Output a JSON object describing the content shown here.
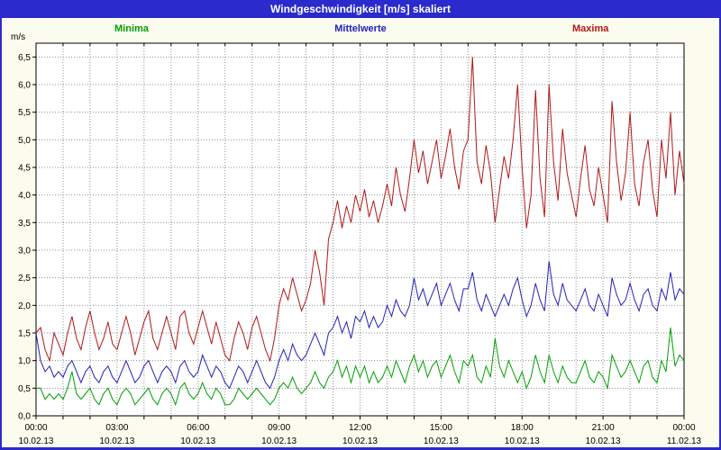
{
  "window": {
    "title": "Windgeschwindigkeit [m/s] skaliert"
  },
  "colors": {
    "title_bar": "#2A2ACD",
    "plot_background": "#FFFFFF",
    "page_background": "#FBFBEE",
    "grid": "#909090",
    "axis": "#000000"
  },
  "chart_data": {
    "type": "line",
    "title": "Windgeschwindigkeit [m/s] skaliert",
    "y_unit": "m/s",
    "ylabel": "m/s",
    "xlabel": "",
    "y_min": 0.0,
    "y_max": 6.5,
    "y_step": 0.5,
    "grid": "dotted",
    "legend_position": "top",
    "y_tick_labels": [
      "0,0",
      "0,5",
      "1,0",
      "1,5",
      "2,0",
      "2,5",
      "3,0",
      "3,5",
      "4,0",
      "4,5",
      "5,0",
      "5,5",
      "6,0",
      "6,5"
    ],
    "x_hours": 24,
    "x_ticks": [
      {
        "time": "00:00",
        "date": "10.02.13"
      },
      {
        "time": "03:00",
        "date": "10.02.13"
      },
      {
        "time": "06:00",
        "date": "10.02.13"
      },
      {
        "time": "09:00",
        "date": "10.02.13"
      },
      {
        "time": "12:00",
        "date": "10.02.13"
      },
      {
        "time": "15:00",
        "date": "10.02.13"
      },
      {
        "time": "18:00",
        "date": "10.02.13"
      },
      {
        "time": "21:00",
        "date": "10.02.13"
      },
      {
        "time": "00:00",
        "date": "11.02.13"
      }
    ],
    "series": [
      {
        "name": "Minima",
        "color": "#00A000",
        "values": [
          0.5,
          0.5,
          0.3,
          0.4,
          0.3,
          0.4,
          0.3,
          0.5,
          0.8,
          0.4,
          0.3,
          0.4,
          0.5,
          0.3,
          0.2,
          0.4,
          0.5,
          0.3,
          0.2,
          0.4,
          0.5,
          0.4,
          0.2,
          0.3,
          0.4,
          0.5,
          0.3,
          0.2,
          0.4,
          0.5,
          0.4,
          0.2,
          0.5,
          0.6,
          0.4,
          0.3,
          0.4,
          0.6,
          0.4,
          0.3,
          0.5,
          0.4,
          0.2,
          0.2,
          0.3,
          0.5,
          0.4,
          0.3,
          0.4,
          0.5,
          0.4,
          0.3,
          0.2,
          0.3,
          0.5,
          0.6,
          0.5,
          0.7,
          0.5,
          0.4,
          0.5,
          0.6,
          0.8,
          0.6,
          0.5,
          0.7,
          0.8,
          1.0,
          0.7,
          0.9,
          0.6,
          0.9,
          0.7,
          0.9,
          0.6,
          0.8,
          0.6,
          0.7,
          0.9,
          0.7,
          1.0,
          0.8,
          0.6,
          0.9,
          1.1,
          0.8,
          1.0,
          0.7,
          0.9,
          1.0,
          0.7,
          0.9,
          1.1,
          0.8,
          0.6,
          1.0,
          0.9,
          1.1,
          0.7,
          0.6,
          0.9,
          0.7,
          1.4,
          0.9,
          0.7,
          1.0,
          0.8,
          0.6,
          0.8,
          0.5,
          0.7,
          1.1,
          0.8,
          0.6,
          1.1,
          0.8,
          0.6,
          0.9,
          0.7,
          0.6,
          0.6,
          0.8,
          1.0,
          0.7,
          0.6,
          0.8,
          0.7,
          0.5,
          1.1,
          0.9,
          0.7,
          0.8,
          1.0,
          0.8,
          0.6,
          0.9,
          1.0,
          0.7,
          0.6,
          1.0,
          0.8,
          1.6,
          0.9,
          1.1,
          1.0
        ]
      },
      {
        "name": "Mittelwerte",
        "color": "#2222BB",
        "values": [
          1.5,
          1.0,
          0.8,
          0.9,
          0.7,
          0.8,
          0.7,
          0.9,
          1.0,
          0.8,
          0.6,
          0.8,
          0.9,
          0.7,
          0.6,
          0.8,
          0.9,
          0.7,
          0.6,
          0.8,
          1.0,
          0.8,
          0.6,
          0.7,
          0.9,
          1.0,
          0.8,
          0.6,
          0.8,
          0.9,
          0.8,
          0.6,
          0.9,
          1.0,
          0.8,
          0.7,
          0.8,
          1.1,
          0.9,
          0.7,
          0.9,
          0.8,
          0.6,
          0.5,
          0.7,
          0.9,
          0.8,
          0.6,
          0.8,
          1.0,
          0.8,
          0.6,
          0.5,
          0.7,
          1.0,
          1.2,
          1.0,
          1.3,
          1.1,
          1.0,
          1.1,
          1.3,
          1.5,
          1.3,
          1.1,
          1.5,
          1.6,
          1.8,
          1.5,
          1.7,
          1.4,
          1.8,
          1.7,
          1.9,
          1.6,
          1.8,
          1.6,
          1.7,
          2.0,
          1.8,
          2.1,
          1.9,
          1.8,
          2.0,
          2.5,
          2.1,
          2.3,
          2.0,
          2.2,
          2.4,
          2.0,
          2.2,
          2.4,
          2.1,
          1.9,
          2.3,
          2.3,
          2.6,
          2.1,
          1.9,
          2.2,
          2.0,
          1.8,
          2.0,
          2.2,
          2.0,
          2.3,
          2.5,
          2.1,
          1.8,
          2.0,
          2.4,
          2.1,
          1.9,
          2.8,
          2.2,
          2.0,
          2.4,
          2.1,
          2.0,
          1.9,
          2.1,
          2.3,
          2.0,
          1.9,
          2.2,
          2.0,
          1.8,
          2.5,
          2.2,
          2.0,
          2.1,
          2.4,
          2.1,
          1.9,
          2.2,
          2.3,
          2.0,
          1.9,
          2.3,
          2.1,
          2.6,
          2.1,
          2.3,
          2.2
        ]
      },
      {
        "name": "Maxima",
        "color": "#B01818",
        "values": [
          1.5,
          1.6,
          1.2,
          1.0,
          1.5,
          1.3,
          1.1,
          1.5,
          1.8,
          1.4,
          1.2,
          1.6,
          1.9,
          1.5,
          1.2,
          1.4,
          1.7,
          1.3,
          1.2,
          1.5,
          1.8,
          1.5,
          1.1,
          1.4,
          1.7,
          1.9,
          1.4,
          1.2,
          1.5,
          1.8,
          1.5,
          1.2,
          1.8,
          1.9,
          1.5,
          1.3,
          1.6,
          1.9,
          1.6,
          1.3,
          1.7,
          1.4,
          1.1,
          1.0,
          1.4,
          1.7,
          1.5,
          1.2,
          1.6,
          1.8,
          1.5,
          1.2,
          1.0,
          1.4,
          2.0,
          2.3,
          2.1,
          2.5,
          2.2,
          1.9,
          2.1,
          2.4,
          3.0,
          2.6,
          2.0,
          3.2,
          3.5,
          3.9,
          3.4,
          3.8,
          3.5,
          4.0,
          3.7,
          4.1,
          3.6,
          3.9,
          3.5,
          3.8,
          4.2,
          3.8,
          4.5,
          4.0,
          3.7,
          4.3,
          5.0,
          4.4,
          4.8,
          4.2,
          4.6,
          5.0,
          4.3,
          4.7,
          5.2,
          4.5,
          4.1,
          4.8,
          5.0,
          6.5,
          4.6,
          4.2,
          4.9,
          4.4,
          3.5,
          4.1,
          4.7,
          4.3,
          5.0,
          6.0,
          4.5,
          3.4,
          4.0,
          5.9,
          4.3,
          3.6,
          6.0,
          4.6,
          3.9,
          5.2,
          4.4,
          4.0,
          3.6,
          4.3,
          4.9,
          4.1,
          3.8,
          4.5,
          4.0,
          3.5,
          5.7,
          4.6,
          3.9,
          4.4,
          5.5,
          4.2,
          3.8,
          4.6,
          5.0,
          4.1,
          3.6,
          5.0,
          4.3,
          5.5,
          4.0,
          4.8,
          4.2
        ]
      }
    ]
  }
}
